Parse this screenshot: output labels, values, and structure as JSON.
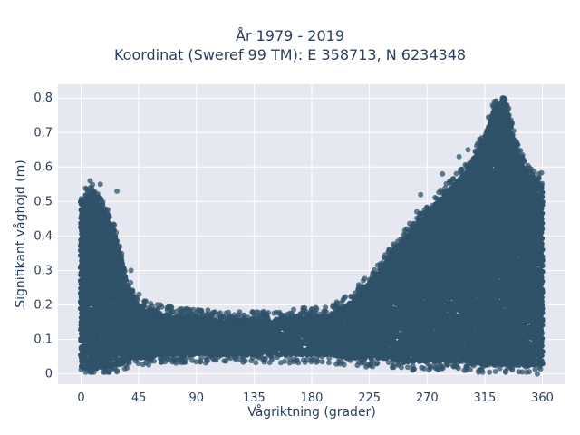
{
  "chart_data": {
    "type": "scatter",
    "title_lines": [
      "År 1979 - 2019",
      "Koordinat (Sweref 99 TM): E 358713, N 6234348"
    ],
    "xlabel": "Vågriktning (grader)",
    "ylabel": "Signifikant våghöjd (m)",
    "xlim": [
      -18,
      378
    ],
    "ylim": [
      -0.03,
      0.84
    ],
    "xticks": [
      0,
      45,
      90,
      135,
      180,
      225,
      270,
      315,
      360
    ],
    "xtick_labels": [
      "0",
      "45",
      "90",
      "135",
      "180",
      "225",
      "270",
      "315",
      "360"
    ],
    "yticks": [
      0,
      0.1,
      0.2,
      0.3,
      0.4,
      0.5,
      0.6,
      0.7,
      0.8
    ],
    "ytick_labels": [
      "0",
      "0,1",
      "0,2",
      "0,3",
      "0,4",
      "0,5",
      "0,6",
      "0,7",
      "0,8"
    ],
    "grid": true,
    "marker_color": "#2f5269",
    "plot_background": "#e5e8f0",
    "envelope": {
      "x": [
        0,
        5,
        10,
        15,
        20,
        25,
        30,
        35,
        40,
        45,
        50,
        60,
        75,
        90,
        105,
        120,
        135,
        150,
        165,
        180,
        195,
        210,
        225,
        240,
        255,
        270,
        285,
        300,
        315,
        320,
        325,
        330,
        335,
        340,
        345,
        350,
        355,
        360
      ],
      "ymax": [
        0.5,
        0.51,
        0.52,
        0.48,
        0.45,
        0.42,
        0.35,
        0.27,
        0.22,
        0.2,
        0.18,
        0.17,
        0.16,
        0.16,
        0.15,
        0.15,
        0.15,
        0.15,
        0.16,
        0.16,
        0.17,
        0.2,
        0.26,
        0.33,
        0.4,
        0.46,
        0.52,
        0.58,
        0.68,
        0.74,
        0.78,
        0.8,
        0.72,
        0.64,
        0.6,
        0.57,
        0.56,
        0.55
      ],
      "ymin": [
        0.02,
        0.02,
        0.02,
        0.02,
        0.02,
        0.03,
        0.03,
        0.04,
        0.05,
        0.05,
        0.05,
        0.06,
        0.06,
        0.06,
        0.06,
        0.06,
        0.06,
        0.06,
        0.06,
        0.06,
        0.06,
        0.05,
        0.05,
        0.05,
        0.04,
        0.04,
        0.04,
        0.04,
        0.03,
        0.03,
        0.03,
        0.03,
        0.03,
        0.03,
        0.03,
        0.03,
        0.03,
        0.03
      ]
    },
    "outliers": [
      {
        "x": 7,
        "y": 0.56
      },
      {
        "x": 28,
        "y": 0.53
      },
      {
        "x": 15,
        "y": 0.55
      },
      {
        "x": 39,
        "y": 0.3
      },
      {
        "x": 62,
        "y": 0.2
      },
      {
        "x": 137,
        "y": 0.17
      },
      {
        "x": 176,
        "y": 0.18
      },
      {
        "x": 232,
        "y": 0.29
      },
      {
        "x": 254,
        "y": 0.42
      },
      {
        "x": 265,
        "y": 0.52
      },
      {
        "x": 282,
        "y": 0.58
      },
      {
        "x": 295,
        "y": 0.63
      },
      {
        "x": 302,
        "y": 0.65
      },
      {
        "x": 311,
        "y": 0.68
      },
      {
        "x": 357,
        "y": 0.47
      },
      {
        "x": 356,
        "y": 0.0
      },
      {
        "x": 262,
        "y": 0.47
      }
    ]
  }
}
